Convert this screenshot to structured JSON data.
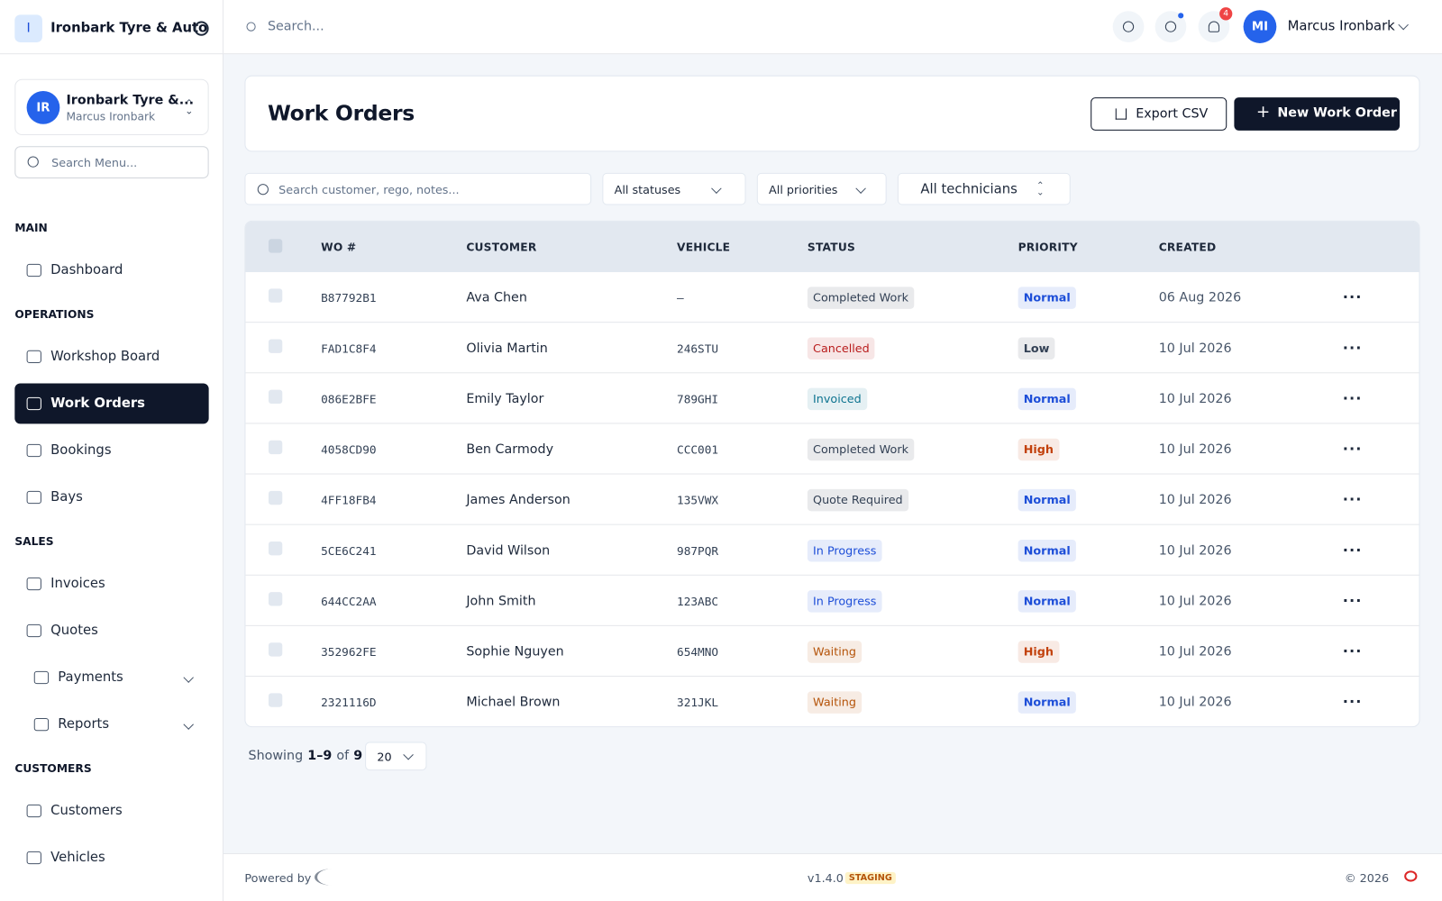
{
  "sidebar": {
    "brand_initial": "I",
    "brand_name": "Ironbark Tyre & Auto",
    "org_avatar": "IR",
    "org_name": "Ironbark Tyre &...",
    "org_user": "Marcus Ironbark",
    "search_placeholder": "Search Menu...",
    "sections": [
      {
        "label": "MAIN",
        "items": [
          {
            "label": "Dashboard"
          }
        ]
      },
      {
        "label": "OPERATIONS",
        "items": [
          {
            "label": "Workshop Board"
          },
          {
            "label": "Work Orders",
            "active": true
          },
          {
            "label": "Bookings"
          },
          {
            "label": "Bays"
          }
        ]
      },
      {
        "label": "SALES",
        "items": [
          {
            "label": "Invoices"
          },
          {
            "label": "Quotes"
          },
          {
            "label": "Payments",
            "expandable": true
          },
          {
            "label": "Reports",
            "expandable": true
          }
        ]
      },
      {
        "label": "CUSTOMERS",
        "items": [
          {
            "label": "Customers"
          },
          {
            "label": "Vehicles"
          }
        ]
      }
    ]
  },
  "topbar": {
    "search_placeholder": "Search...",
    "notification_count": "4",
    "user_initials": "MI",
    "user_name": "Marcus Ironbark"
  },
  "header": {
    "title": "Work Orders",
    "export_button": "Export CSV",
    "new_button": "New Work Order"
  },
  "filters": {
    "search_placeholder": "Search customer, rego, notes...",
    "status": "All statuses",
    "priority": "All priorities",
    "technician": "All technicians"
  },
  "table": {
    "columns": [
      "WO #",
      "CUSTOMER",
      "VEHICLE",
      "STATUS",
      "PRIORITY",
      "CREATED"
    ],
    "rows": [
      {
        "wo": "B87792B1",
        "customer": "Ava Chen",
        "vehicle": "—",
        "status": "Completed Work",
        "status_color": "#334155",
        "priority": "Normal",
        "priority_color": "#1d4ed8",
        "created": "06 Aug 2026"
      },
      {
        "wo": "FAD1C8F4",
        "customer": "Olivia Martin",
        "vehicle": "246STU",
        "status": "Cancelled",
        "status_color": "#b91c1c",
        "priority": "Low",
        "priority_color": "#334155",
        "created": "10 Jul 2026"
      },
      {
        "wo": "086E2BFE",
        "customer": "Emily Taylor",
        "vehicle": "789GHI",
        "status": "Invoiced",
        "status_color": "#0e7490",
        "priority": "Normal",
        "priority_color": "#1d4ed8",
        "created": "10 Jul 2026"
      },
      {
        "wo": "4058CD90",
        "customer": "Ben Carmody",
        "vehicle": "CCC001",
        "status": "Completed Work",
        "status_color": "#334155",
        "priority": "High",
        "priority_color": "#c2410c",
        "created": "10 Jul 2026"
      },
      {
        "wo": "4FF18FB4",
        "customer": "James Anderson",
        "vehicle": "135VWX",
        "status": "Quote Required",
        "status_color": "#334155",
        "priority": "Normal",
        "priority_color": "#1d4ed8",
        "created": "10 Jul 2026"
      },
      {
        "wo": "5CE6C241",
        "customer": "David Wilson",
        "vehicle": "987PQR",
        "status": "In Progress",
        "status_color": "#1d4ed8",
        "priority": "Normal",
        "priority_color": "#1d4ed8",
        "created": "10 Jul 2026"
      },
      {
        "wo": "644CC2AA",
        "customer": "John Smith",
        "vehicle": "123ABC",
        "status": "In Progress",
        "status_color": "#1d4ed8",
        "priority": "Normal",
        "priority_color": "#1d4ed8",
        "created": "10 Jul 2026"
      },
      {
        "wo": "352962FE",
        "customer": "Sophie Nguyen",
        "vehicle": "654MNO",
        "status": "Waiting",
        "status_color": "#b45309",
        "priority": "High",
        "priority_color": "#c2410c",
        "created": "10 Jul 2026"
      },
      {
        "wo": "2321116D",
        "customer": "Michael Brown",
        "vehicle": "321JKL",
        "status": "Waiting",
        "status_color": "#b45309",
        "priority": "Normal",
        "priority_color": "#1d4ed8",
        "created": "10 Jul 2026"
      }
    ]
  },
  "pagination": {
    "showing": "Showing",
    "range": "1–9",
    "of": "of",
    "total": "9",
    "page_size": "20"
  },
  "footer": {
    "powered_by": "Powered by",
    "version": "v1.4.0",
    "environment": "STAGING",
    "copyright": "© 2026"
  }
}
